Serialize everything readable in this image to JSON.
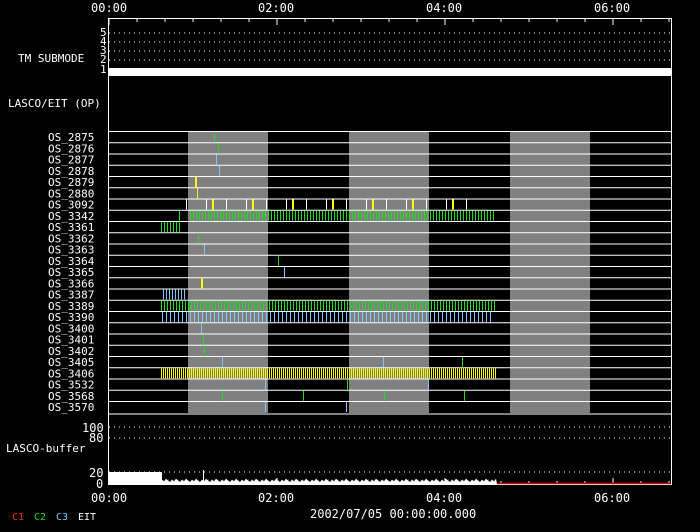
{
  "time_axis": {
    "labels": [
      "00:00",
      "02:00",
      "04:00",
      "06:00"
    ],
    "date_label": "2002/07/05 00:00:00.000"
  },
  "tm_submode": {
    "title": "TM SUBMODE",
    "levels": [
      "5",
      "4",
      "3",
      "2",
      "1"
    ]
  },
  "lasco_eit": {
    "title": "LASCO/EIT (OP)",
    "rows": [
      "OS_2875",
      "OS_2876",
      "OS_2877",
      "OS_2878",
      "OS_2879",
      "OS_2880",
      "OS_3092",
      "OS_3342",
      "OS_3361",
      "OS_3362",
      "OS_3363",
      "OS_3364",
      "OS_3365",
      "OS_3366",
      "OS_3387",
      "OS_3389",
      "OS_3390",
      "OS_3400",
      "OS_3401",
      "OS_3402",
      "OS_3405",
      "OS_3406",
      "OS_3532",
      "OS_3568",
      "OS_3570"
    ]
  },
  "buffer": {
    "title": "LASCO-buffer",
    "levels_top": [
      "100",
      "80"
    ],
    "levels_bottom": [
      "20",
      "0"
    ]
  },
  "legend": [
    {
      "label": "C1",
      "color": "#ff2a2a"
    },
    {
      "label": "C2",
      "color": "#22dd22"
    },
    {
      "label": "C3",
      "color": "#7ec8ff"
    },
    {
      "label": "EIT",
      "color": "#ffffff"
    }
  ],
  "colors": {
    "background": "#000000",
    "axis": "#ffffff",
    "shade": "#808080",
    "c2": "#22dd22",
    "c3": "#7ec8ff",
    "eit_yellow": "#ffff00",
    "buffer_end": "#cc0000"
  }
}
